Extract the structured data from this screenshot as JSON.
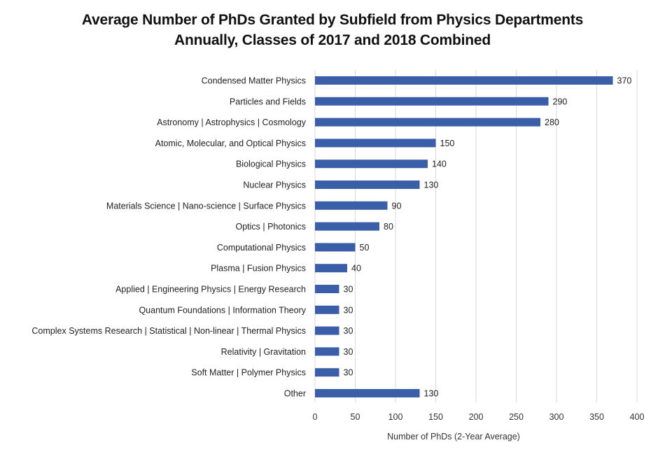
{
  "chart_data": {
    "type": "bar",
    "orientation": "horizontal",
    "title": "Average Number of PhDs Granted by Subfield from Physics Departments Annually, Classes of 2017 and 2018 Combined",
    "title_lines": [
      "Average Number of PhDs Granted by Subfield from Physics Departments",
      "Annually, Classes of 2017 and 2018 Combined"
    ],
    "xlabel": "Number of PhDs (2-Year Average)",
    "ylabel": "",
    "xlim": [
      0,
      400
    ],
    "xticks": [
      0,
      50,
      100,
      150,
      200,
      250,
      300,
      350,
      400
    ],
    "grid": "vertical",
    "bar_color": "#3a5ea8",
    "categories": [
      "Condensed Matter Physics",
      "Particles and Fields",
      "Astronomy | Astrophysics | Cosmology",
      "Atomic, Molecular, and Optical Physics",
      "Biological Physics",
      "Nuclear Physics",
      "Materials Science | Nano-science | Surface Physics",
      "Optics | Photonics",
      "Computational Physics",
      "Plasma | Fusion Physics",
      "Applied | Engineering Physics | Energy Research",
      "Quantum Foundations | Information Theory",
      "Complex Systems Research | Statistical | Non-linear | Thermal Physics",
      "Relativity | Gravitation",
      "Soft Matter | Polymer Physics",
      "Other"
    ],
    "values": [
      370,
      290,
      280,
      150,
      140,
      130,
      90,
      80,
      50,
      40,
      30,
      30,
      30,
      30,
      30,
      130
    ]
  }
}
